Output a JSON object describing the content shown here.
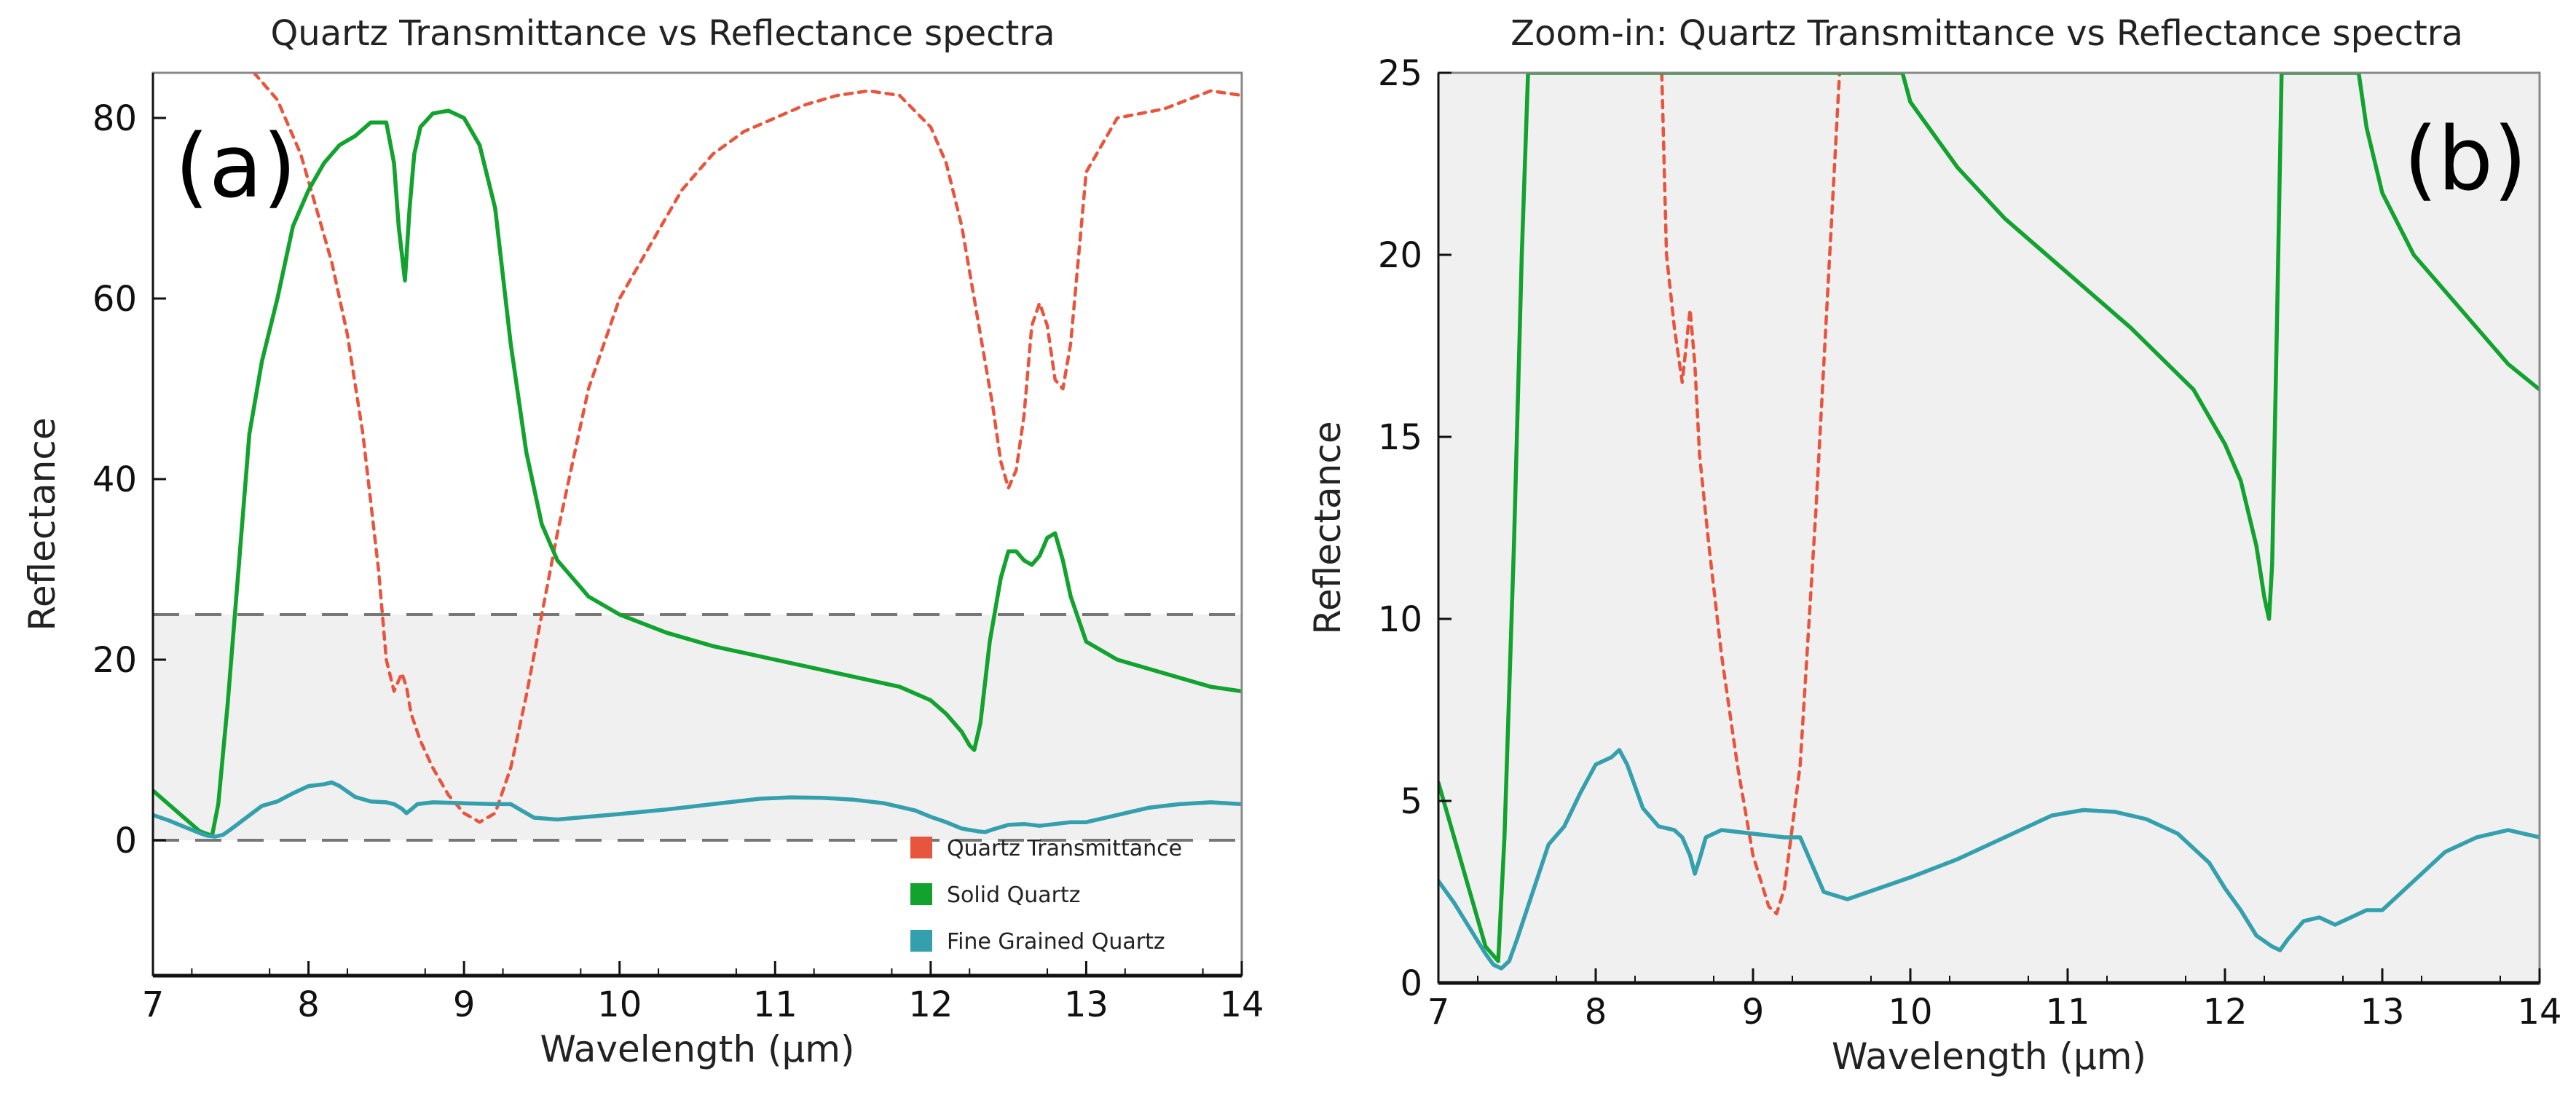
{
  "charts": [
    {
      "type": "line",
      "id": "a",
      "panel_label": "(a)",
      "title": "Quartz Transmittance vs Reflectance spectra",
      "xlabel": "Wavelength (µm)",
      "ylabel": "Reflectance",
      "xlim": [
        7,
        14
      ],
      "ylim": [
        -15,
        85
      ],
      "xticks": [
        7,
        8,
        9,
        10,
        11,
        12,
        13,
        14
      ],
      "xtick_labels": [
        "7",
        "8",
        "9",
        "10",
        "11",
        "12",
        "13",
        "14"
      ],
      "yticks": [
        0,
        20,
        40,
        60,
        80
      ],
      "ytick_labels": [
        "0",
        "20",
        "40",
        "60",
        "80"
      ],
      "zoom_band": [
        0,
        25
      ],
      "legend": [
        "Quartz Transmittance",
        "Solid Quartz",
        "Fine Grained Quartz"
      ],
      "series": [
        {
          "name": "Quartz Transmittance",
          "color": "#e8553e",
          "style": "dashed",
          "x": [
            7.65,
            7.8,
            7.95,
            8.05,
            8.15,
            8.25,
            8.35,
            8.45,
            8.5,
            8.55,
            8.6,
            8.63,
            8.66,
            8.72,
            8.8,
            8.9,
            9.0,
            9.1,
            9.2,
            9.3,
            9.4,
            9.5,
            9.6,
            9.7,
            9.8,
            10.0,
            10.2,
            10.4,
            10.6,
            10.8,
            11.0,
            11.2,
            11.4,
            11.6,
            11.8,
            12.0,
            12.1,
            12.2,
            12.3,
            12.4,
            12.45,
            12.5,
            12.55,
            12.6,
            12.65,
            12.7,
            12.75,
            12.8,
            12.85,
            12.9,
            13.0,
            13.2,
            13.5,
            13.8,
            14.0
          ],
          "y": [
            85,
            82,
            76,
            70,
            64,
            56,
            45,
            30,
            20,
            16.5,
            18.5,
            17,
            14,
            11,
            8,
            5,
            3,
            2,
            3,
            8,
            16,
            25,
            34,
            42,
            50,
            60,
            66,
            72,
            76,
            78.5,
            80,
            81.5,
            82.5,
            83,
            82.5,
            79,
            75,
            68,
            58,
            48,
            42,
            39,
            41,
            47,
            57,
            59.5,
            57,
            51,
            50,
            55,
            74,
            80,
            81,
            83,
            82.5
          ]
        },
        {
          "name": "Solid Quartz",
          "color": "#12a22e",
          "style": "solid",
          "x": [
            7.0,
            7.1,
            7.2,
            7.3,
            7.38,
            7.42,
            7.48,
            7.55,
            7.62,
            7.7,
            7.8,
            7.9,
            8.0,
            8.1,
            8.2,
            8.3,
            8.4,
            8.5,
            8.55,
            8.58,
            8.62,
            8.65,
            8.68,
            8.72,
            8.8,
            8.9,
            9.0,
            9.1,
            9.2,
            9.3,
            9.4,
            9.5,
            9.6,
            9.8,
            10.0,
            10.3,
            10.6,
            11.0,
            11.4,
            11.8,
            12.0,
            12.1,
            12.2,
            12.25,
            12.28,
            12.32,
            12.38,
            12.45,
            12.5,
            12.55,
            12.6,
            12.65,
            12.7,
            12.75,
            12.8,
            12.85,
            12.9,
            13.0,
            13.2,
            13.5,
            13.8,
            14.0
          ],
          "y": [
            5.5,
            4,
            2.5,
            1,
            0.5,
            4,
            15,
            30,
            45,
            53,
            60,
            68,
            72,
            75,
            77,
            78,
            79.5,
            79.5,
            75,
            68,
            62,
            70,
            76,
            79,
            80.5,
            80.8,
            80,
            77,
            70,
            55,
            43,
            35,
            31,
            27,
            25,
            23,
            21.5,
            20,
            18.5,
            17,
            15.5,
            14,
            12,
            10.5,
            10,
            13,
            22,
            29,
            32,
            32,
            31,
            30.5,
            31.5,
            33.5,
            34,
            31,
            27,
            22,
            20,
            18.5,
            17,
            16.5
          ]
        },
        {
          "name": "Fine Grained Quartz",
          "color": "#35a0ad",
          "style": "solid",
          "x": [
            7.0,
            7.1,
            7.2,
            7.3,
            7.35,
            7.4,
            7.45,
            7.5,
            7.6,
            7.7,
            7.8,
            7.9,
            8.0,
            8.1,
            8.15,
            8.2,
            8.3,
            8.4,
            8.5,
            8.55,
            8.6,
            8.63,
            8.66,
            8.7,
            8.8,
            9.0,
            9.2,
            9.3,
            9.35,
            9.45,
            9.6,
            9.8,
            10.0,
            10.3,
            10.6,
            10.9,
            11.1,
            11.3,
            11.5,
            11.7,
            11.9,
            12.0,
            12.1,
            12.2,
            12.3,
            12.35,
            12.4,
            12.5,
            12.6,
            12.7,
            12.8,
            12.9,
            13.0,
            13.2,
            13.4,
            13.6,
            13.8,
            14.0
          ],
          "y": [
            2.8,
            2.2,
            1.5,
            0.8,
            0.5,
            0.4,
            0.6,
            1.2,
            2.5,
            3.8,
            4.3,
            5.2,
            6.0,
            6.2,
            6.4,
            6.0,
            4.8,
            4.3,
            4.2,
            4.0,
            3.5,
            3.0,
            3.4,
            4.0,
            4.2,
            4.1,
            4.0,
            4.0,
            3.5,
            2.5,
            2.3,
            2.6,
            2.9,
            3.4,
            4.0,
            4.6,
            4.75,
            4.7,
            4.5,
            4.1,
            3.3,
            2.6,
            2.0,
            1.3,
            1.0,
            0.9,
            1.2,
            1.7,
            1.8,
            1.6,
            1.8,
            2.0,
            2.0,
            2.8,
            3.6,
            4.0,
            4.2,
            4.0
          ]
        }
      ]
    },
    {
      "type": "line",
      "id": "b",
      "panel_label": "(b)",
      "title": "Zoom-in: Quartz Transmittance vs Reflectance spectra",
      "xlabel": "Wavelength (µm)",
      "ylabel": "Reflectance",
      "xlim": [
        7,
        14
      ],
      "ylim": [
        0,
        25
      ],
      "xticks": [
        7,
        8,
        9,
        10,
        11,
        12,
        13,
        14
      ],
      "xtick_labels": [
        "7",
        "8",
        "9",
        "10",
        "11",
        "12",
        "13",
        "14"
      ],
      "yticks": [
        0,
        5,
        10,
        15,
        20,
        25
      ],
      "ytick_labels": [
        "0",
        "5",
        "10",
        "15",
        "20",
        "25"
      ],
      "zoom_band": [
        0,
        25
      ],
      "legend": [],
      "series": [
        {
          "name": "Quartz Transmittance",
          "color": "#e8553e",
          "style": "dashed",
          "x": [
            8.42,
            8.45,
            8.5,
            8.55,
            8.6,
            8.63,
            8.66,
            8.72,
            8.8,
            8.9,
            9.0,
            9.1,
            9.15,
            9.2,
            9.3,
            9.4,
            9.5,
            9.55
          ],
          "y": [
            25,
            20,
            18,
            16.5,
            18.5,
            17,
            14.5,
            12,
            9,
            6,
            3.5,
            2.1,
            1.9,
            2.6,
            6,
            13,
            21,
            25
          ]
        },
        {
          "name": "Solid Quartz",
          "color": "#12a22e",
          "style": "solid",
          "x": [
            7.0,
            7.1,
            7.2,
            7.3,
            7.38,
            7.42,
            7.48,
            7.53,
            7.57,
            9.95,
            10.0,
            10.3,
            10.6,
            11.0,
            11.4,
            11.8,
            12.0,
            12.1,
            12.2,
            12.25,
            12.28,
            12.3,
            12.33,
            12.36,
            12.85,
            12.9,
            13.0,
            13.2,
            13.5,
            13.8,
            14.0
          ],
          "y": [
            5.5,
            4,
            2.5,
            1,
            0.6,
            4,
            12,
            20,
            25,
            25,
            24.2,
            22.4,
            21,
            19.5,
            18,
            16.3,
            14.8,
            13.8,
            12,
            10.6,
            10,
            11.5,
            18,
            25,
            25,
            23.5,
            21.7,
            20,
            18.5,
            17,
            16.3
          ]
        },
        {
          "name": "Fine Grained Quartz",
          "color": "#35a0ad",
          "style": "solid",
          "x": [
            7.0,
            7.1,
            7.2,
            7.3,
            7.35,
            7.4,
            7.45,
            7.5,
            7.6,
            7.7,
            7.8,
            7.9,
            8.0,
            8.1,
            8.15,
            8.2,
            8.3,
            8.4,
            8.5,
            8.55,
            8.6,
            8.63,
            8.66,
            8.7,
            8.8,
            9.0,
            9.2,
            9.3,
            9.35,
            9.45,
            9.6,
            9.8,
            10.0,
            10.3,
            10.6,
            10.9,
            11.1,
            11.3,
            11.5,
            11.7,
            11.9,
            12.0,
            12.1,
            12.2,
            12.3,
            12.35,
            12.4,
            12.5,
            12.6,
            12.7,
            12.8,
            12.9,
            13.0,
            13.2,
            13.4,
            13.6,
            13.8,
            14.0
          ],
          "y": [
            2.8,
            2.2,
            1.5,
            0.8,
            0.5,
            0.4,
            0.6,
            1.2,
            2.5,
            3.8,
            4.3,
            5.2,
            6.0,
            6.2,
            6.4,
            6.0,
            4.8,
            4.3,
            4.2,
            4.0,
            3.5,
            3.0,
            3.4,
            4.0,
            4.2,
            4.1,
            4.0,
            4.0,
            3.5,
            2.5,
            2.3,
            2.6,
            2.9,
            3.4,
            4.0,
            4.6,
            4.75,
            4.7,
            4.5,
            4.1,
            3.3,
            2.6,
            2.0,
            1.3,
            1.0,
            0.9,
            1.2,
            1.7,
            1.8,
            1.6,
            1.8,
            2.0,
            2.0,
            2.8,
            3.6,
            4.0,
            4.2,
            4.0
          ]
        }
      ]
    }
  ]
}
